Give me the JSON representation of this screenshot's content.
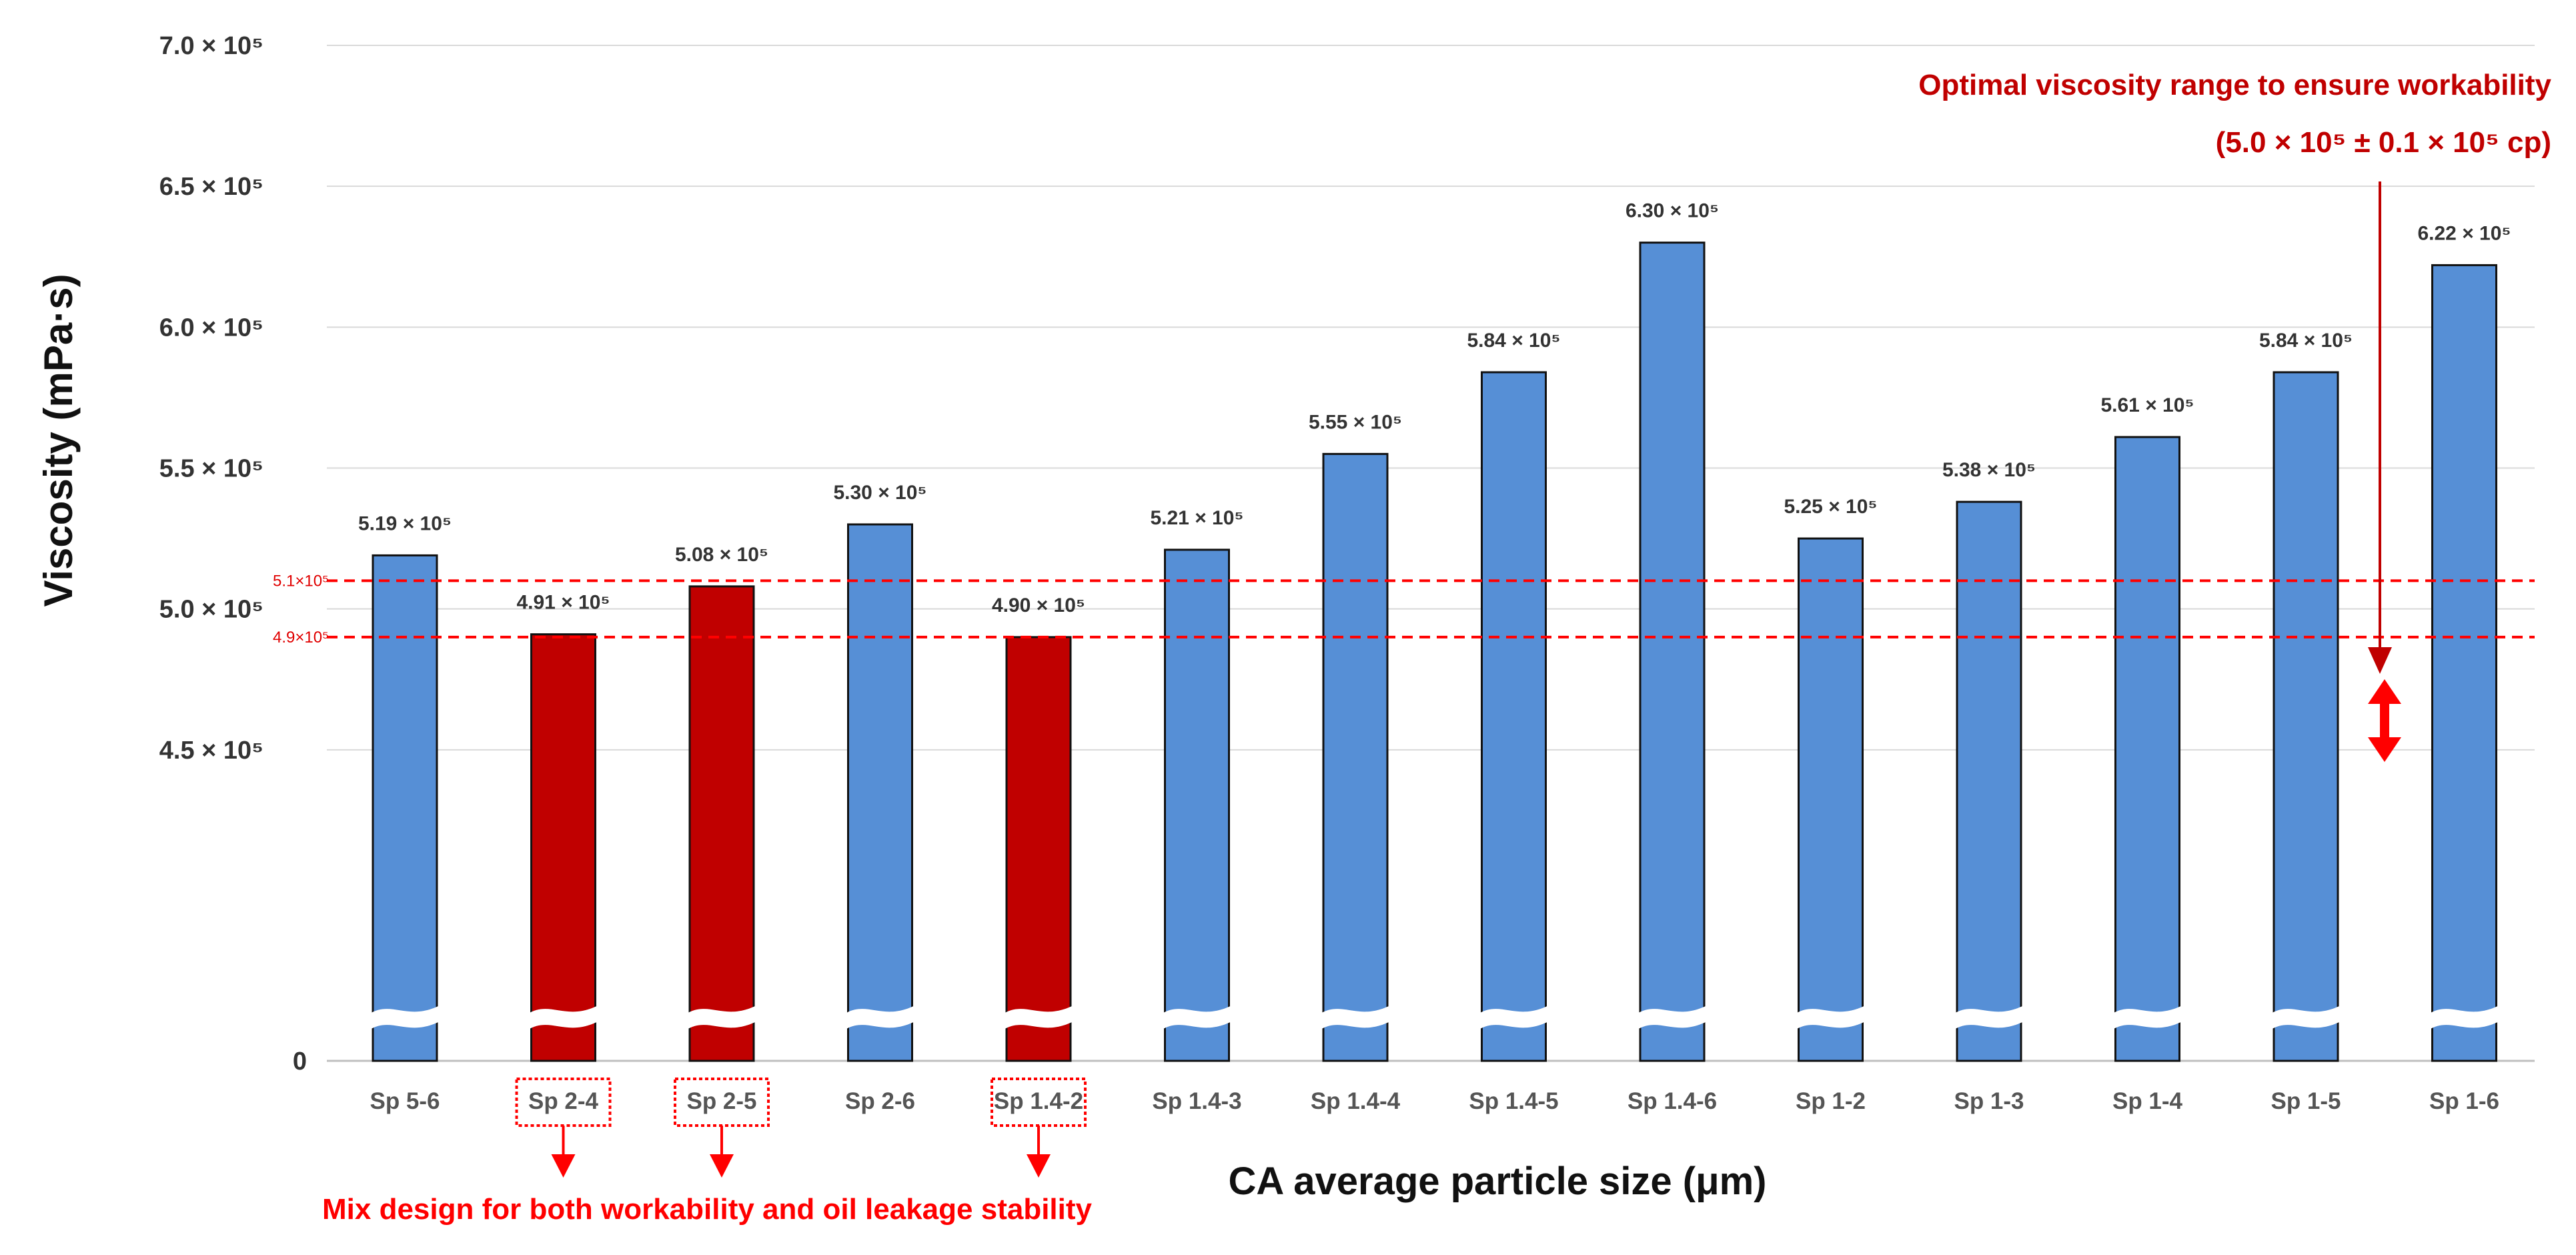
{
  "chart_data": {
    "type": "bar",
    "title": "",
    "xlabel": "CA average particle size (μm)",
    "ylabel": "Viscosity (mPa·s)",
    "categories": [
      "Sp 5-6",
      "Sp 2-4",
      "Sp 2-5",
      "Sp 2-6",
      "Sp 1.4-2",
      "Sp 1.4-3",
      "Sp 1.4-4",
      "Sp 1.4-5",
      "Sp 1.4-6",
      "Sp 1-2",
      "Sp 1-3",
      "Sp 1-4",
      "Sp 1-5",
      "Sp 1-6"
    ],
    "values": [
      519000,
      491000,
      508000,
      530000,
      490000,
      521000,
      555000,
      584000,
      630000,
      525000,
      538000,
      561000,
      584000,
      622000
    ],
    "value_labels": [
      "5.19 × 10⁵",
      "4.91 × 10⁵",
      "5.08 × 10⁵",
      "5.30 × 10⁵",
      "4.90 × 10⁵",
      "5.21 × 10⁵",
      "5.55 × 10⁵",
      "5.84 × 10⁵",
      "6.30 × 10⁵",
      "5.25 × 10⁵",
      "5.38 × 10⁵",
      "5.61 × 10⁵",
      "5.84 × 10⁵",
      "6.22 × 10⁵"
    ],
    "highlighted": [
      "Sp 2-4",
      "Sp 2-5",
      "Sp 1.4-2"
    ],
    "y_axis_break": true,
    "ylim_upper": [
      400000,
      700000
    ],
    "yticks": [
      {
        "value": 0,
        "label": "0"
      },
      {
        "value": 450000,
        "label": "4.5 × 10⁵"
      },
      {
        "value": 500000,
        "label": "5.0 × 10⁵"
      },
      {
        "value": 550000,
        "label": "5.5 × 10⁵"
      },
      {
        "value": 600000,
        "label": "6.0 × 10⁵"
      },
      {
        "value": 650000,
        "label": "6.5 × 10⁵"
      },
      {
        "value": 700000,
        "label": "7.0 × 10⁵"
      }
    ],
    "reference_lines": [
      {
        "value": 510000,
        "label": "5.1×10⁵"
      },
      {
        "value": 490000,
        "label": "4.9×10⁵"
      }
    ],
    "grid": true,
    "legend": "none"
  },
  "annotations": {
    "optimal_line1": "Optimal viscosity range to ensure workability",
    "optimal_line2": "(5.0 × 10⁵ ± 0.1 × 10⁵ cp)",
    "mix_design": "Mix design for both workability and oil leakage stability"
  },
  "colors": {
    "bar": "#568fd6",
    "highlight": "#c00000",
    "reference": "#ff0000",
    "annotation": "#c00000"
  }
}
